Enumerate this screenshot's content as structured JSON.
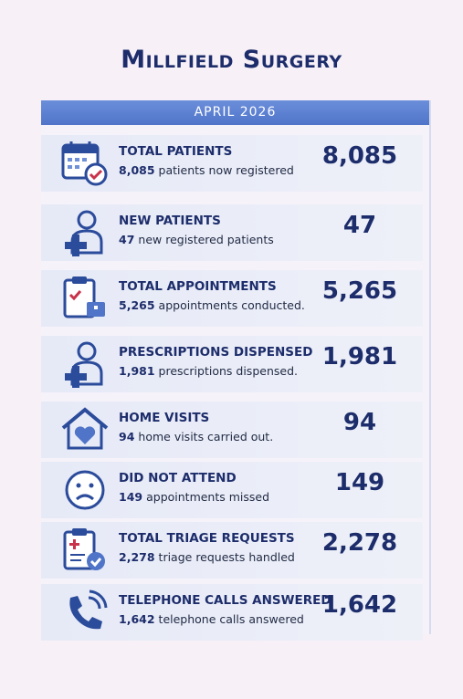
{
  "header": {
    "title": "Millfield Surgery",
    "period": "APRIL 2026"
  },
  "items": [
    {
      "title": "TOTAL PATIENTS",
      "value": "8,085",
      "description": "patients now registered"
    },
    {
      "title": "NEW PATIENTS",
      "value": "47",
      "description": "new registered patients"
    },
    {
      "title": "TOTAL APPOINTMENTS",
      "value": "5,265",
      "description": "appointments conducted."
    },
    {
      "title": "PRESCRIPTIONS DISPENSED",
      "value": "1,981",
      "description": "prescriptions dispensed."
    },
    {
      "title": "HOME VISITS",
      "value": "94",
      "description": "home visits carried out."
    },
    {
      "title": "DID NOT ATTEND",
      "value": "149",
      "description": "appointments missed"
    },
    {
      "title": "TOTAL TRIAGE REQUESTS",
      "value": "2,278",
      "description": "triage requests handled"
    },
    {
      "title": "TELEPHONE CALLS ANSWERED",
      "value": "1,642",
      "description": "telephone calls answered"
    }
  ]
}
